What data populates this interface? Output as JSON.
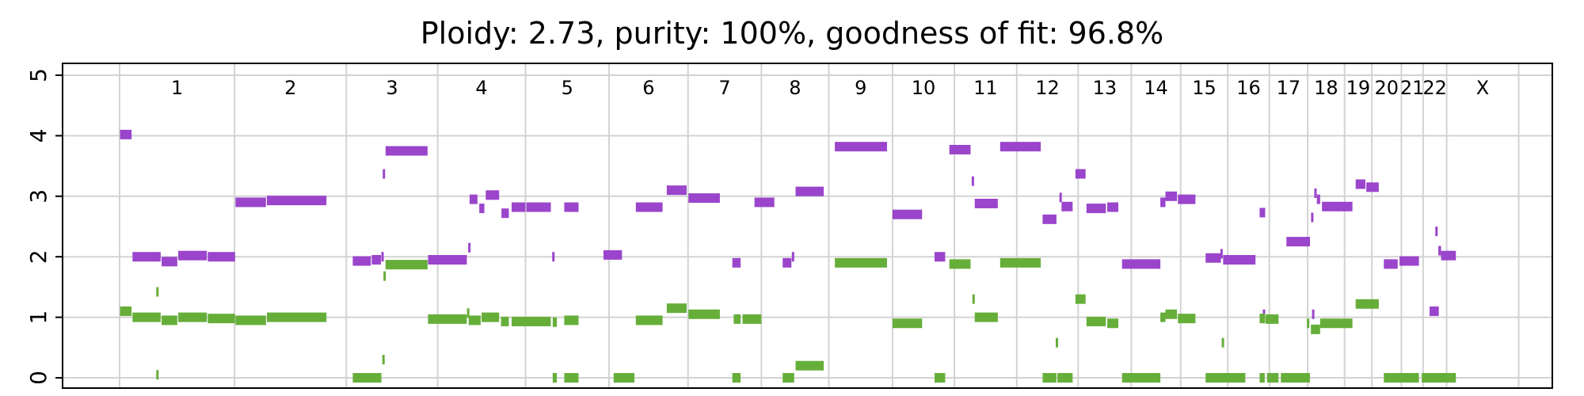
{
  "chart_data": {
    "type": "segment",
    "title": "Ploidy: 2.73, purity: 100%, goodness of fit: 96.8%",
    "xlabel": "",
    "ylabel": "",
    "ylim": [
      -0.15,
      5.15
    ],
    "yticks": [
      0,
      1,
      2,
      3,
      4,
      5
    ],
    "grid": true,
    "colors": {
      "major": "#9a45cc",
      "minor": "#66ae3a",
      "grid": "#d3d3d3",
      "axis": "#000000"
    },
    "genome_range": [
      0,
      3060
    ],
    "chromosomes": [
      {
        "name": "1",
        "start": 0,
        "end": 249
      },
      {
        "name": "2",
        "start": 249,
        "end": 491
      },
      {
        "name": "3",
        "start": 491,
        "end": 689
      },
      {
        "name": "4",
        "start": 689,
        "end": 879
      },
      {
        "name": "5",
        "start": 879,
        "end": 1060
      },
      {
        "name": "6",
        "start": 1060,
        "end": 1231
      },
      {
        "name": "7",
        "start": 1231,
        "end": 1390
      },
      {
        "name": "8",
        "start": 1390,
        "end": 1536
      },
      {
        "name": "9",
        "start": 1536,
        "end": 1674
      },
      {
        "name": "10",
        "start": 1674,
        "end": 1808
      },
      {
        "name": "11",
        "start": 1808,
        "end": 1943
      },
      {
        "name": "12",
        "start": 1943,
        "end": 2076
      },
      {
        "name": "13",
        "start": 2076,
        "end": 2191
      },
      {
        "name": "14",
        "start": 2191,
        "end": 2298
      },
      {
        "name": "15",
        "start": 2298,
        "end": 2400
      },
      {
        "name": "16",
        "start": 2400,
        "end": 2490
      },
      {
        "name": "17",
        "start": 2490,
        "end": 2573
      },
      {
        "name": "18",
        "start": 2573,
        "end": 2653
      },
      {
        "name": "19",
        "start": 2653,
        "end": 2712
      },
      {
        "name": "20",
        "start": 2712,
        "end": 2776
      },
      {
        "name": "21",
        "start": 2776,
        "end": 2823
      },
      {
        "name": "22",
        "start": 2823,
        "end": 2874
      },
      {
        "name": "X",
        "start": 2874,
        "end": 3030
      }
    ],
    "series": [
      {
        "name": "major",
        "segments": [
          [
            1,
            26,
            4.02
          ],
          [
            28,
            89,
            2.0
          ],
          [
            91,
            125,
            1.92
          ],
          [
            127,
            189,
            2.02
          ],
          [
            191,
            250,
            2.0
          ],
          [
            251,
            317,
            2.9
          ],
          [
            319,
            448,
            2.93
          ],
          [
            505,
            544,
            1.93
          ],
          [
            546,
            566,
            1.95
          ],
          [
            568,
            571,
            2.0
          ],
          [
            571,
            574,
            3.37
          ],
          [
            576,
            667,
            3.75
          ],
          [
            668,
            752,
            1.95
          ],
          [
            756,
            759,
            2.15
          ],
          [
            758,
            775,
            2.95
          ],
          [
            779,
            790,
            2.8
          ],
          [
            793,
            822,
            3.02
          ],
          [
            827,
            843,
            2.72
          ],
          [
            849,
            879,
            2.82
          ],
          [
            881,
            934,
            2.82
          ],
          [
            938,
            941,
            2.0
          ],
          [
            963,
            994,
            2.82
          ],
          [
            1048,
            1088,
            2.03
          ],
          [
            1118,
            1176,
            2.82
          ],
          [
            1185,
            1228,
            3.1
          ],
          [
            1232,
            1300,
            2.97
          ],
          [
            1327,
            1345,
            1.9
          ],
          [
            1375,
            1418,
            2.9
          ],
          [
            1436,
            1455,
            1.9
          ],
          [
            1456,
            1461,
            2.0
          ],
          [
            1464,
            1525,
            3.08
          ],
          [
            1549,
            1662,
            3.82
          ],
          [
            1674,
            1738,
            2.7
          ],
          [
            1765,
            1788,
            2.0
          ],
          [
            1797,
            1843,
            3.77
          ],
          [
            1846,
            1850,
            3.25
          ],
          [
            1852,
            1902,
            2.88
          ],
          [
            1907,
            1995,
            3.82
          ],
          [
            1999,
            2029,
            2.62
          ],
          [
            2036,
            2040,
            2.98
          ],
          [
            2040,
            2064,
            2.83
          ],
          [
            2070,
            2092,
            3.37
          ],
          [
            2094,
            2136,
            2.8
          ],
          [
            2139,
            2163,
            2.82
          ],
          [
            2171,
            2254,
            1.88
          ],
          [
            2254,
            2265,
            2.9
          ],
          [
            2265,
            2290,
            3.0
          ],
          [
            2292,
            2330,
            2.95
          ],
          [
            2352,
            2385,
            1.98
          ],
          [
            2385,
            2388,
            2.05
          ],
          [
            2390,
            2460,
            1.95
          ],
          [
            2469,
            2481,
            2.73
          ],
          [
            2477,
            2480,
            1.05
          ],
          [
            2527,
            2578,
            2.25
          ],
          [
            2582,
            2584,
            2.65
          ],
          [
            2583,
            2587,
            1.05
          ],
          [
            2589,
            2591,
            3.05
          ],
          [
            2593,
            2600,
            2.95
          ],
          [
            2604,
            2670,
            2.83
          ],
          [
            2677,
            2698,
            3.2
          ],
          [
            2700,
            2727,
            3.15
          ],
          [
            2738,
            2768,
            1.88
          ],
          [
            2772,
            2814,
            1.93
          ],
          [
            2837,
            2857,
            1.1
          ],
          [
            2851,
            2853,
            2.42
          ],
          [
            2856,
            2862,
            2.1
          ],
          [
            2862,
            2894,
            2.02
          ]
        ]
      },
      {
        "name": "minor",
        "segments": [
          [
            1,
            26,
            1.1
          ],
          [
            28,
            89,
            1.0
          ],
          [
            91,
            125,
            0.95
          ],
          [
            127,
            189,
            1.0
          ],
          [
            191,
            250,
            0.98
          ],
          [
            80,
            84,
            0.05
          ],
          [
            80,
            84,
            1.42
          ],
          [
            251,
            317,
            0.95
          ],
          [
            319,
            448,
            1.0
          ],
          [
            505,
            567,
            0.0
          ],
          [
            570,
            573,
            0.3
          ],
          [
            572,
            576,
            1.68
          ],
          [
            576,
            667,
            1.87
          ],
          [
            668,
            752,
            0.97
          ],
          [
            753,
            757,
            1.07
          ],
          [
            756,
            782,
            0.95
          ],
          [
            784,
            822,
            1.0
          ],
          [
            826,
            843,
            0.93
          ],
          [
            849,
            934,
            0.93
          ],
          [
            938,
            947,
            0.0
          ],
          [
            938,
            947,
            0.92
          ],
          [
            963,
            994,
            0.0
          ],
          [
            963,
            994,
            0.95
          ],
          [
            1070,
            1115,
            0.0
          ],
          [
            1118,
            1176,
            0.95
          ],
          [
            1185,
            1228,
            1.15
          ],
          [
            1232,
            1300,
            1.05
          ],
          [
            1327,
            1345,
            0.0
          ],
          [
            1330,
            1345,
            0.97
          ],
          [
            1349,
            1390,
            0.97
          ],
          [
            1436,
            1461,
            0.0
          ],
          [
            1464,
            1525,
            0.2
          ],
          [
            1549,
            1662,
            1.9
          ],
          [
            1674,
            1738,
            0.9
          ],
          [
            1765,
            1788,
            0.0
          ],
          [
            1797,
            1843,
            1.88
          ],
          [
            1848,
            1851,
            1.3
          ],
          [
            1852,
            1902,
            1.0
          ],
          [
            1907,
            1995,
            1.9
          ],
          [
            1999,
            2029,
            0.0
          ],
          [
            2029,
            2031,
            0.58
          ],
          [
            2031,
            2064,
            0.0
          ],
          [
            2070,
            2092,
            1.3
          ],
          [
            2094,
            2136,
            0.93
          ],
          [
            2139,
            2163,
            0.9
          ],
          [
            2171,
            2254,
            0.0
          ],
          [
            2254,
            2265,
            1.0
          ],
          [
            2265,
            2290,
            1.05
          ],
          [
            2292,
            2330,
            0.98
          ],
          [
            2352,
            2438,
            0.0
          ],
          [
            2388,
            2391,
            0.58
          ],
          [
            2469,
            2481,
            0.98
          ],
          [
            2469,
            2480,
            0.0
          ],
          [
            2485,
            2510,
            0.0
          ],
          [
            2482,
            2510,
            0.97
          ],
          [
            2515,
            2578,
            0.0
          ],
          [
            2580,
            2600,
            0.8
          ],
          [
            2600,
            2670,
            0.9
          ],
          [
            2572,
            2576,
            0.9
          ],
          [
            2677,
            2727,
            1.22
          ],
          [
            2738,
            2814,
            0.0
          ],
          [
            2820,
            2894,
            0.0
          ]
        ]
      }
    ]
  }
}
